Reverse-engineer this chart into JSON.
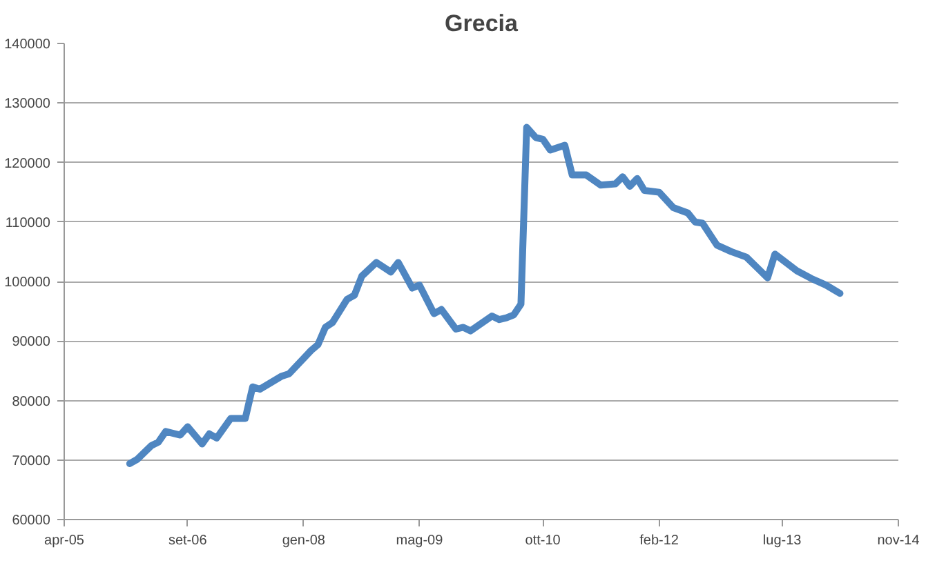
{
  "chart_data": {
    "type": "line",
    "title": "Grecia",
    "x": [
      "2006-01",
      "2006-02",
      "2006-04",
      "2006-05",
      "2006-06",
      "2006-08",
      "2006-09",
      "2006-11",
      "2006-12",
      "2007-01",
      "2007-03",
      "2007-05",
      "2007-06",
      "2007-07",
      "2007-10",
      "2007-11",
      "2008-02",
      "2008-03",
      "2008-04",
      "2008-05",
      "2008-07",
      "2008-08",
      "2008-09",
      "2008-11",
      "2009-01",
      "2009-02",
      "2009-04",
      "2009-05",
      "2009-07",
      "2009-08",
      "2009-10",
      "2009-11",
      "2009-12",
      "2010-03",
      "2010-04",
      "2010-05",
      "2010-06",
      "2010-07",
      "2010-07-25",
      "2010-09",
      "2010-10",
      "2010-11",
      "2011-01",
      "2011-02",
      "2011-04",
      "2011-06",
      "2011-08",
      "2011-09",
      "2011-10",
      "2011-11",
      "2011-12",
      "2012-02",
      "2012-04",
      "2012-06",
      "2012-07",
      "2012-08",
      "2012-10",
      "2012-12",
      "2013-02",
      "2013-04",
      "2013-05",
      "2013-06",
      "2013-09",
      "2013-11",
      "2014-01",
      "2014-03"
    ],
    "series": [
      {
        "color": "#4f86c1",
        "values": [
          69400,
          70100,
          72400,
          73000,
          74800,
          74200,
          75600,
          72700,
          74400,
          73700,
          77000,
          77000,
          82300,
          81900,
          84100,
          84500,
          88400,
          89400,
          92300,
          93100,
          97000,
          97700,
          100900,
          103200,
          101600,
          103200,
          98900,
          99400,
          94600,
          95300,
          92000,
          92300,
          91700,
          94200,
          93600,
          93900,
          94400,
          96200,
          125900,
          124200,
          123900,
          122100,
          122900,
          117900,
          117900,
          116200,
          116400,
          117600,
          116000,
          117300,
          115300,
          115000,
          112400,
          111500,
          110000,
          109800,
          106100,
          105000,
          104100,
          101800,
          100600,
          104600,
          101800,
          100500,
          99400,
          98000
        ]
      }
    ],
    "xlim": [
      "2005-04",
      "2014-11"
    ],
    "xticks": [
      {
        "value": "2005-04",
        "label": "apr-05"
      },
      {
        "value": "2006-09",
        "label": "set-06"
      },
      {
        "value": "2008-01",
        "label": "gen-08"
      },
      {
        "value": "2009-05",
        "label": "mag-09"
      },
      {
        "value": "2010-10",
        "label": "ott-10"
      },
      {
        "value": "2012-02",
        "label": "feb-12"
      },
      {
        "value": "2013-07",
        "label": "lug-13"
      },
      {
        "value": "2014-11",
        "label": "nov-14"
      }
    ],
    "ylim": [
      60000,
      140000
    ],
    "yticks": [
      60000,
      70000,
      80000,
      90000,
      100000,
      110000,
      120000,
      130000,
      140000
    ],
    "grid": "y",
    "marker": "none",
    "line_style": "solid"
  }
}
